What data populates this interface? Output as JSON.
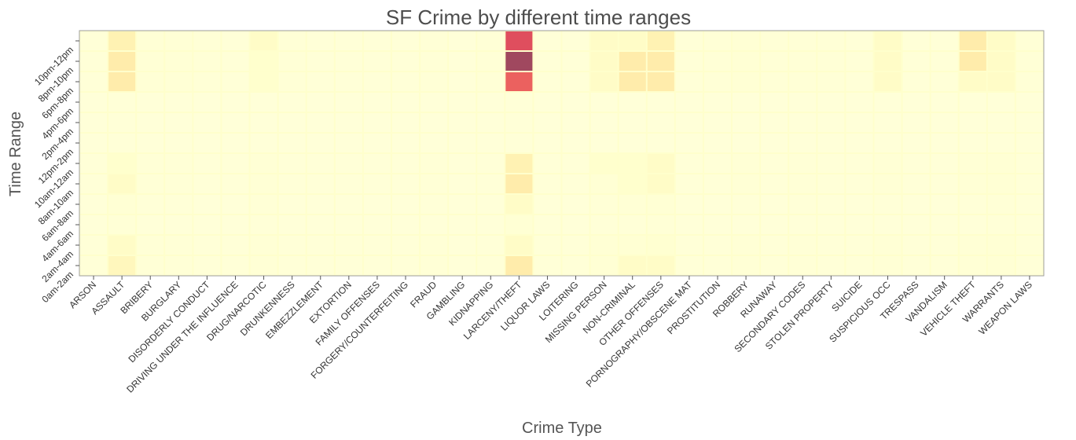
{
  "chart_data": {
    "type": "heatmap",
    "title": "SF Crime by different time ranges",
    "xlabel": "Crime Type",
    "ylabel": "Time Range",
    "x_categories": [
      "ARSON",
      "ASSAULT",
      "BRIBERY",
      "BURGLARY",
      "DISORDERLY CONDUCT",
      "DRIVING UNDER THE INFLUENCE",
      "DRUG/NARCOTIC",
      "DRUNKENNESS",
      "EMBEZZLEMENT",
      "EXTORTION",
      "FAMILY OFFENSES",
      "FORGERY/COUNTERFEITING",
      "FRAUD",
      "GAMBLING",
      "KIDNAPPING",
      "LARCENY/THEFT",
      "LIQUOR LAWS",
      "LOITERING",
      "MISSING PERSON",
      "NON-CRIMINAL",
      "OTHER OFFENSES",
      "PORNOGRAPHY/OBSCENE MAT",
      "PROSTITUTION",
      "ROBBERY",
      "RUNAWAY",
      "SECONDARY CODES",
      "STOLEN PROPERTY",
      "SUICIDE",
      "SUSPICIOUS OCC",
      "TRESPASS",
      "VANDALISM",
      "VEHICLE THEFT",
      "WARRANTS",
      "WEAPON LAWS"
    ],
    "y_categories": [
      "0am-2am",
      "2am-4am",
      "4am-6am",
      "6am-8am",
      "8am-10am",
      "10am-12am",
      "12pm-2pm",
      "2pm-4pm",
      "4pm-6pm",
      "6pm-8pm",
      "8pm-10pm",
      "10pm-12pm"
    ],
    "y_order_top_to_bottom": [
      "10pm-12pm",
      "8pm-10pm",
      "6pm-8pm",
      "4pm-6pm",
      "2pm-4pm",
      "12pm-2pm",
      "10am-12am",
      "8am-10am",
      "6am-8am",
      "4am-6am",
      "2am-4am",
      "0am-2am"
    ],
    "values_top_to_bottom": [
      [
        0.02,
        0.25,
        0.04,
        0.04,
        0.03,
        0.02,
        0.15,
        0.03,
        0.02,
        0.02,
        0.02,
        0.02,
        0.03,
        0.01,
        0.03,
        0.8,
        0.02,
        0.02,
        0.15,
        0.15,
        0.25,
        0.02,
        0.03,
        0.05,
        0.03,
        0.03,
        0.03,
        0.02,
        0.15,
        0.02,
        0.02,
        0.3,
        0.15,
        0.03
      ],
      [
        0.02,
        0.3,
        0.04,
        0.04,
        0.03,
        0.02,
        0.12,
        0.03,
        0.02,
        0.02,
        0.02,
        0.02,
        0.03,
        0.01,
        0.03,
        1.0,
        0.02,
        0.02,
        0.15,
        0.3,
        0.3,
        0.02,
        0.03,
        0.05,
        0.03,
        0.03,
        0.03,
        0.02,
        0.15,
        0.02,
        0.02,
        0.3,
        0.15,
        0.03
      ],
      [
        0.02,
        0.3,
        0.04,
        0.04,
        0.03,
        0.02,
        0.12,
        0.03,
        0.02,
        0.02,
        0.02,
        0.02,
        0.03,
        0.01,
        0.03,
        0.72,
        0.02,
        0.02,
        0.15,
        0.3,
        0.3,
        0.02,
        0.03,
        0.05,
        0.03,
        0.03,
        0.03,
        0.02,
        0.15,
        0.02,
        0.02,
        0.15,
        0.15,
        0.03
      ],
      [
        0.01,
        0.02,
        0.01,
        0.01,
        0.01,
        0.01,
        0.01,
        0.01,
        0.01,
        0.01,
        0.01,
        0.01,
        0.01,
        0.01,
        0.01,
        0.02,
        0.01,
        0.01,
        0.01,
        0.01,
        0.01,
        0.01,
        0.01,
        0.01,
        0.01,
        0.01,
        0.01,
        0.01,
        0.01,
        0.01,
        0.01,
        0.01,
        0.01,
        0.01
      ],
      [
        0.01,
        0.02,
        0.01,
        0.01,
        0.01,
        0.01,
        0.01,
        0.01,
        0.01,
        0.01,
        0.01,
        0.01,
        0.01,
        0.01,
        0.01,
        0.02,
        0.01,
        0.01,
        0.01,
        0.01,
        0.01,
        0.01,
        0.01,
        0.01,
        0.01,
        0.01,
        0.01,
        0.01,
        0.01,
        0.01,
        0.01,
        0.01,
        0.01,
        0.01
      ],
      [
        0.01,
        0.02,
        0.01,
        0.01,
        0.01,
        0.01,
        0.01,
        0.01,
        0.01,
        0.01,
        0.01,
        0.01,
        0.01,
        0.01,
        0.01,
        0.02,
        0.01,
        0.01,
        0.01,
        0.01,
        0.01,
        0.01,
        0.01,
        0.01,
        0.01,
        0.01,
        0.01,
        0.01,
        0.01,
        0.01,
        0.01,
        0.01,
        0.01,
        0.01
      ],
      [
        0.02,
        0.12,
        0.03,
        0.03,
        0.02,
        0.02,
        0.04,
        0.02,
        0.02,
        0.02,
        0.02,
        0.02,
        0.03,
        0.01,
        0.02,
        0.25,
        0.02,
        0.02,
        0.12,
        0.12,
        0.15,
        0.02,
        0.02,
        0.04,
        0.02,
        0.03,
        0.02,
        0.02,
        0.04,
        0.02,
        0.02,
        0.04,
        0.05,
        0.02
      ],
      [
        0.02,
        0.15,
        0.03,
        0.03,
        0.02,
        0.02,
        0.04,
        0.02,
        0.02,
        0.02,
        0.02,
        0.02,
        0.03,
        0.01,
        0.02,
        0.3,
        0.02,
        0.02,
        0.05,
        0.12,
        0.15,
        0.02,
        0.02,
        0.04,
        0.02,
        0.03,
        0.02,
        0.02,
        0.04,
        0.02,
        0.02,
        0.04,
        0.05,
        0.02
      ],
      [
        0.01,
        0.05,
        0.02,
        0.02,
        0.01,
        0.01,
        0.03,
        0.01,
        0.01,
        0.01,
        0.01,
        0.01,
        0.02,
        0.01,
        0.01,
        0.15,
        0.01,
        0.01,
        0.03,
        0.04,
        0.05,
        0.01,
        0.01,
        0.02,
        0.01,
        0.02,
        0.01,
        0.01,
        0.02,
        0.01,
        0.01,
        0.02,
        0.03,
        0.01
      ],
      [
        0.01,
        0.03,
        0.01,
        0.01,
        0.01,
        0.01,
        0.02,
        0.01,
        0.01,
        0.01,
        0.01,
        0.01,
        0.01,
        0.01,
        0.01,
        0.05,
        0.01,
        0.01,
        0.02,
        0.02,
        0.03,
        0.01,
        0.01,
        0.01,
        0.01,
        0.01,
        0.01,
        0.01,
        0.01,
        0.01,
        0.01,
        0.01,
        0.02,
        0.01
      ],
      [
        0.02,
        0.15,
        0.03,
        0.03,
        0.02,
        0.02,
        0.04,
        0.02,
        0.02,
        0.02,
        0.02,
        0.02,
        0.03,
        0.01,
        0.02,
        0.15,
        0.02,
        0.02,
        0.05,
        0.06,
        0.08,
        0.02,
        0.02,
        0.04,
        0.02,
        0.03,
        0.02,
        0.02,
        0.04,
        0.02,
        0.02,
        0.04,
        0.05,
        0.02
      ],
      [
        0.02,
        0.2,
        0.03,
        0.03,
        0.02,
        0.02,
        0.04,
        0.02,
        0.02,
        0.02,
        0.02,
        0.02,
        0.03,
        0.01,
        0.02,
        0.3,
        0.02,
        0.02,
        0.05,
        0.15,
        0.15,
        0.02,
        0.02,
        0.04,
        0.02,
        0.03,
        0.02,
        0.02,
        0.04,
        0.02,
        0.02,
        0.04,
        0.05,
        0.02
      ]
    ],
    "value_scale": "relative intensity 0-1 (estimated)",
    "colormap": [
      "#ffffd9",
      "#ffffcc",
      "#fff2b3",
      "#ffe4a0",
      "#fed484",
      "#f5855d",
      "#e8565f",
      "#d1415d",
      "#a0485f"
    ],
    "grid": false,
    "legend": "none"
  }
}
